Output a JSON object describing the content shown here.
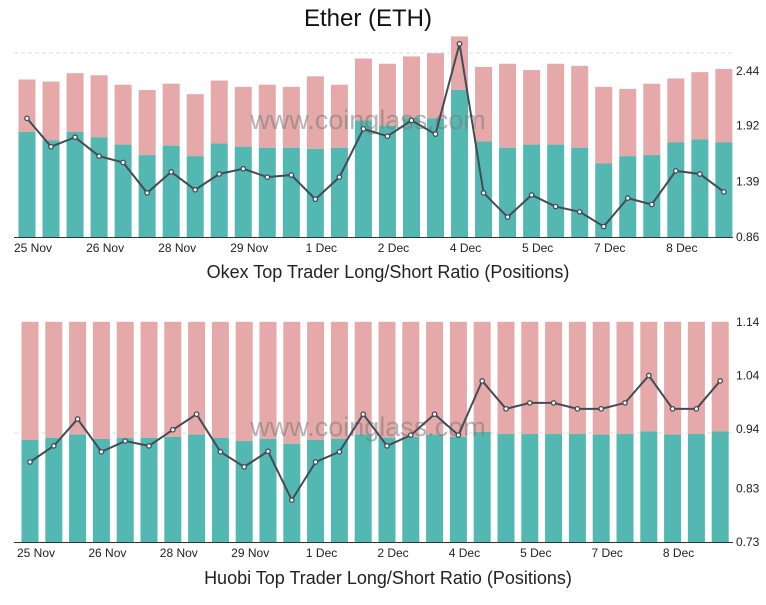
{
  "title": "Ether (ETH)",
  "watermark": "www.coinglass.com",
  "colors": {
    "long": "#52b8b1",
    "short": "#e4a9a8",
    "line": "#454b55"
  },
  "chart_data": [
    {
      "type": "bar",
      "title": "Okex Top Trader Long/Short Ratio (Positions)",
      "x_labels": [
        "25 Nov",
        "26 Nov",
        "28 Nov",
        "29 Nov",
        "1 Dec",
        "2 Dec",
        "4 Dec",
        "5 Dec",
        "7 Dec",
        "8 Dec"
      ],
      "y_ticks": [
        "0.86",
        "1.39",
        "1.92",
        "2.44"
      ],
      "ylim": [
        0.86,
        2.61
      ],
      "bar_total": [
        2.36,
        2.34,
        2.42,
        2.4,
        2.31,
        2.26,
        2.32,
        2.22,
        2.35,
        2.29,
        2.31,
        2.29,
        2.39,
        2.31,
        2.56,
        2.51,
        2.58,
        2.61,
        2.77,
        2.48,
        2.51,
        2.45,
        2.51,
        2.49,
        2.29,
        2.27,
        2.32,
        2.37,
        2.43,
        2.46
      ],
      "bar_long": [
        1.86,
        1.78,
        1.86,
        1.81,
        1.74,
        1.64,
        1.73,
        1.63,
        1.75,
        1.72,
        1.71,
        1.71,
        1.7,
        1.71,
        1.97,
        1.92,
        2.0,
        1.99,
        2.26,
        1.77,
        1.71,
        1.74,
        1.74,
        1.71,
        1.56,
        1.63,
        1.64,
        1.76,
        1.79,
        1.76
      ],
      "ratio": [
        1.99,
        1.72,
        1.81,
        1.63,
        1.57,
        1.28,
        1.48,
        1.31,
        1.46,
        1.51,
        1.43,
        1.45,
        1.22,
        1.43,
        1.89,
        1.82,
        1.97,
        1.84,
        2.7,
        1.28,
        1.05,
        1.26,
        1.15,
        1.1,
        0.96,
        1.23,
        1.17,
        1.49,
        1.46,
        1.29
      ]
    },
    {
      "type": "bar",
      "title": "Huobi Top Trader Long/Short Ratio (Positions)",
      "x_labels": [
        "25 Nov",
        "26 Nov",
        "28 Nov",
        "29 Nov",
        "1 Dec",
        "2 Dec",
        "4 Dec",
        "5 Dec",
        "7 Dec",
        "8 Dec"
      ],
      "y_ticks": [
        "0.73",
        "0.83",
        "0.94",
        "1.04",
        "1.14"
      ],
      "ylim": [
        0.73,
        1.14
      ],
      "bar_total": [
        1.14,
        1.14,
        1.14,
        1.14,
        1.14,
        1.14,
        1.14,
        1.14,
        1.14,
        1.14,
        1.14,
        1.14,
        1.14,
        1.14,
        1.14,
        1.14,
        1.14,
        1.14,
        1.14,
        1.14,
        1.14,
        1.14,
        1.14,
        1.14,
        1.14,
        1.14,
        1.14,
        1.14,
        1.14,
        1.14
      ],
      "bar_long": [
        0.92,
        0.924,
        0.93,
        0.922,
        0.924,
        0.924,
        0.926,
        0.93,
        0.924,
        0.918,
        0.922,
        0.913,
        0.92,
        0.922,
        0.93,
        0.924,
        0.926,
        0.93,
        0.926,
        0.935,
        0.931,
        0.931,
        0.931,
        0.931,
        0.93,
        0.931,
        0.936,
        0.93,
        0.931,
        0.936
      ],
      "ratio": [
        0.879,
        0.909,
        0.959,
        0.898,
        0.918,
        0.909,
        0.939,
        0.968,
        0.898,
        0.87,
        0.899,
        0.808,
        0.879,
        0.898,
        0.968,
        0.909,
        0.929,
        0.968,
        0.929,
        1.03,
        0.978,
        0.989,
        0.989,
        0.978,
        0.978,
        0.989,
        1.04,
        0.978,
        0.978,
        1.03
      ]
    }
  ]
}
